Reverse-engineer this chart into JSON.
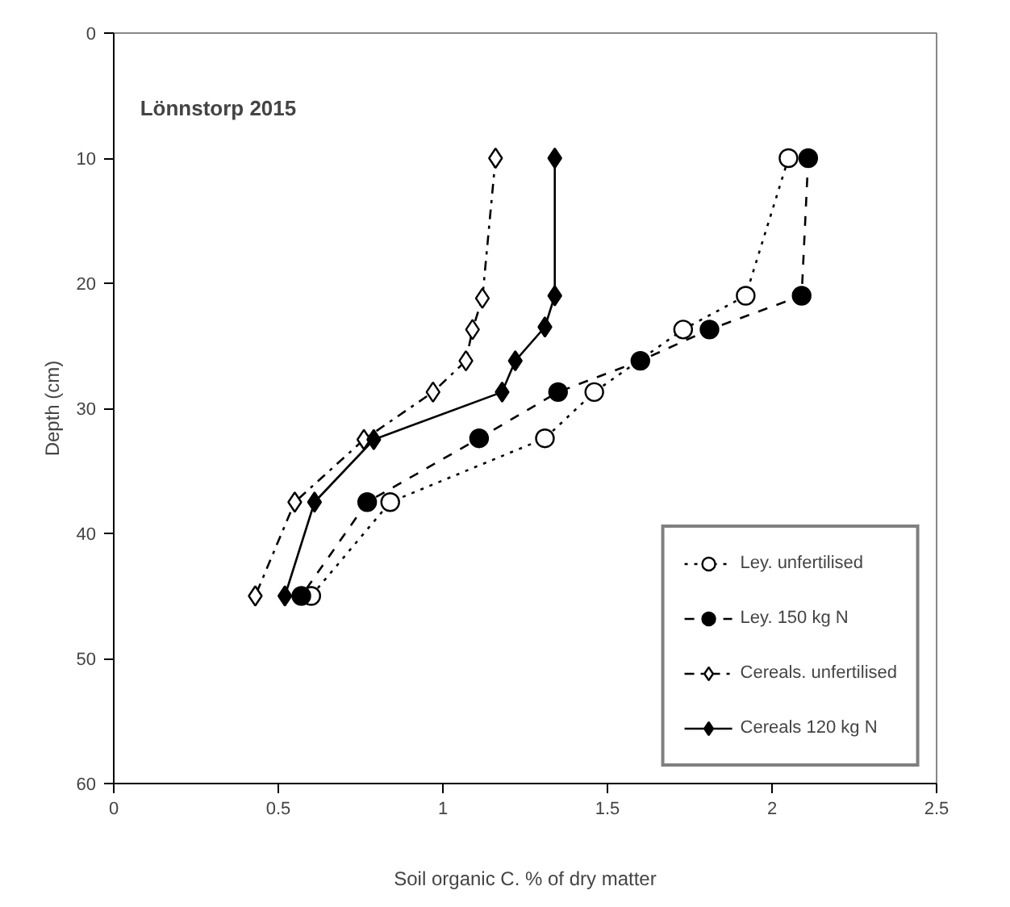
{
  "chart_data": {
    "type": "line",
    "title": "Lönnstorp 2015",
    "xlabel": "Soil organic C. % of dry matter",
    "ylabel": "Depth (cm)",
    "xlim": [
      0,
      2.5
    ],
    "ylim": [
      60,
      0
    ],
    "xticks": [
      0,
      0.5,
      1,
      1.5,
      2,
      2.5
    ],
    "yticks": [
      0,
      10,
      20,
      30,
      40,
      50,
      60
    ],
    "grid": false,
    "legend": "bottom right",
    "series": [
      {
        "name": "Ley. unfertilised",
        "color": "#000000",
        "marker": "circle_open",
        "line_style": "dotted",
        "x": [
          2.05,
          1.92,
          1.73,
          1.46,
          1.31,
          0.84,
          0.6
        ],
        "values": [
          10,
          21,
          23.7,
          28.7,
          32.4,
          37.5,
          45
        ]
      },
      {
        "name": "Ley. 150 kg N",
        "color": "#000000",
        "marker": "circle",
        "line_style": "dashed",
        "x": [
          2.11,
          2.09,
          1.81,
          1.6,
          1.35,
          1.11,
          0.77,
          0.57
        ],
        "values": [
          10,
          21,
          23.7,
          26.2,
          28.7,
          32.4,
          37.5,
          45
        ]
      },
      {
        "name": "Cereals. unfertilised",
        "color": "#000000",
        "marker": "diamond_open",
        "line_style": "dashdot",
        "x": [
          1.16,
          1.12,
          1.09,
          1.07,
          0.97,
          0.76,
          0.55,
          0.43
        ],
        "values": [
          10,
          21.2,
          23.7,
          26.2,
          28.7,
          32.5,
          37.5,
          45
        ]
      },
      {
        "name": "Cereals 120 kg N",
        "color": "#000000",
        "marker": "diamond",
        "line_style": "solid",
        "x": [
          1.34,
          1.34,
          1.31,
          1.22,
          1.18,
          0.79,
          0.61,
          0.52
        ],
        "values": [
          10,
          21,
          23.5,
          26.2,
          28.7,
          32.5,
          37.5,
          45
        ]
      }
    ]
  }
}
